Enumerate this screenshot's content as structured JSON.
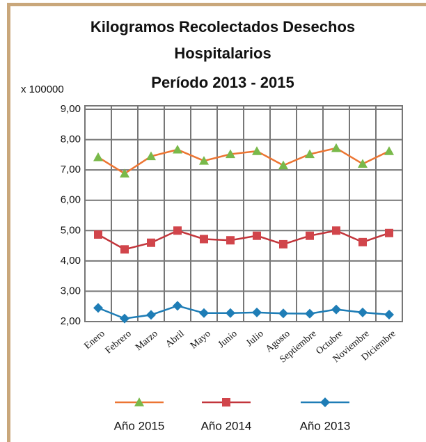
{
  "chart_data": {
    "type": "line",
    "title": "Kilogramos Recolectados Desechos Hospitalarios",
    "subtitle": "Período 2013 - 2015",
    "y_label": "x 100000",
    "categories": [
      "Enero",
      "Febrero",
      "Marzo",
      "Abril",
      "Mayo",
      "Junio",
      "Julio",
      "Agosto",
      "Septiembre",
      "Octubre",
      "Noviembre",
      "Diciembre"
    ],
    "series": [
      {
        "name": "Año 2015",
        "color": "#ec7533",
        "marker": "triangle",
        "marker_color": "#79b94a",
        "values": [
          7.42,
          6.88,
          7.45,
          7.67,
          7.3,
          7.52,
          7.62,
          7.15,
          7.52,
          7.72,
          7.2,
          7.62
        ]
      },
      {
        "name": "Año 2014",
        "color": "#c2353b",
        "marker": "square",
        "marker_color": "#d1454b",
        "values": [
          4.87,
          4.38,
          4.6,
          5.0,
          4.72,
          4.68,
          4.83,
          4.55,
          4.83,
          5.0,
          4.62,
          4.92
        ]
      },
      {
        "name": "Año 2013",
        "color": "#1e7db6",
        "marker": "diamond",
        "marker_color": "#1e7db6",
        "values": [
          2.45,
          2.1,
          2.22,
          2.52,
          2.28,
          2.28,
          2.3,
          2.27,
          2.26,
          2.4,
          2.3,
          2.23
        ]
      }
    ],
    "ylim": [
      2,
      9
    ],
    "yticks": [
      {
        "value": 2,
        "label": "2,00"
      },
      {
        "value": 3,
        "label": "3,00"
      },
      {
        "value": 4,
        "label": "4,00"
      },
      {
        "value": 5,
        "label": "5,00"
      },
      {
        "value": 6,
        "label": "6,00"
      },
      {
        "value": 7,
        "label": "7,00"
      },
      {
        "value": 8,
        "label": "8,00"
      },
      {
        "value": 9,
        "label": "9,00"
      }
    ],
    "grid": true
  }
}
